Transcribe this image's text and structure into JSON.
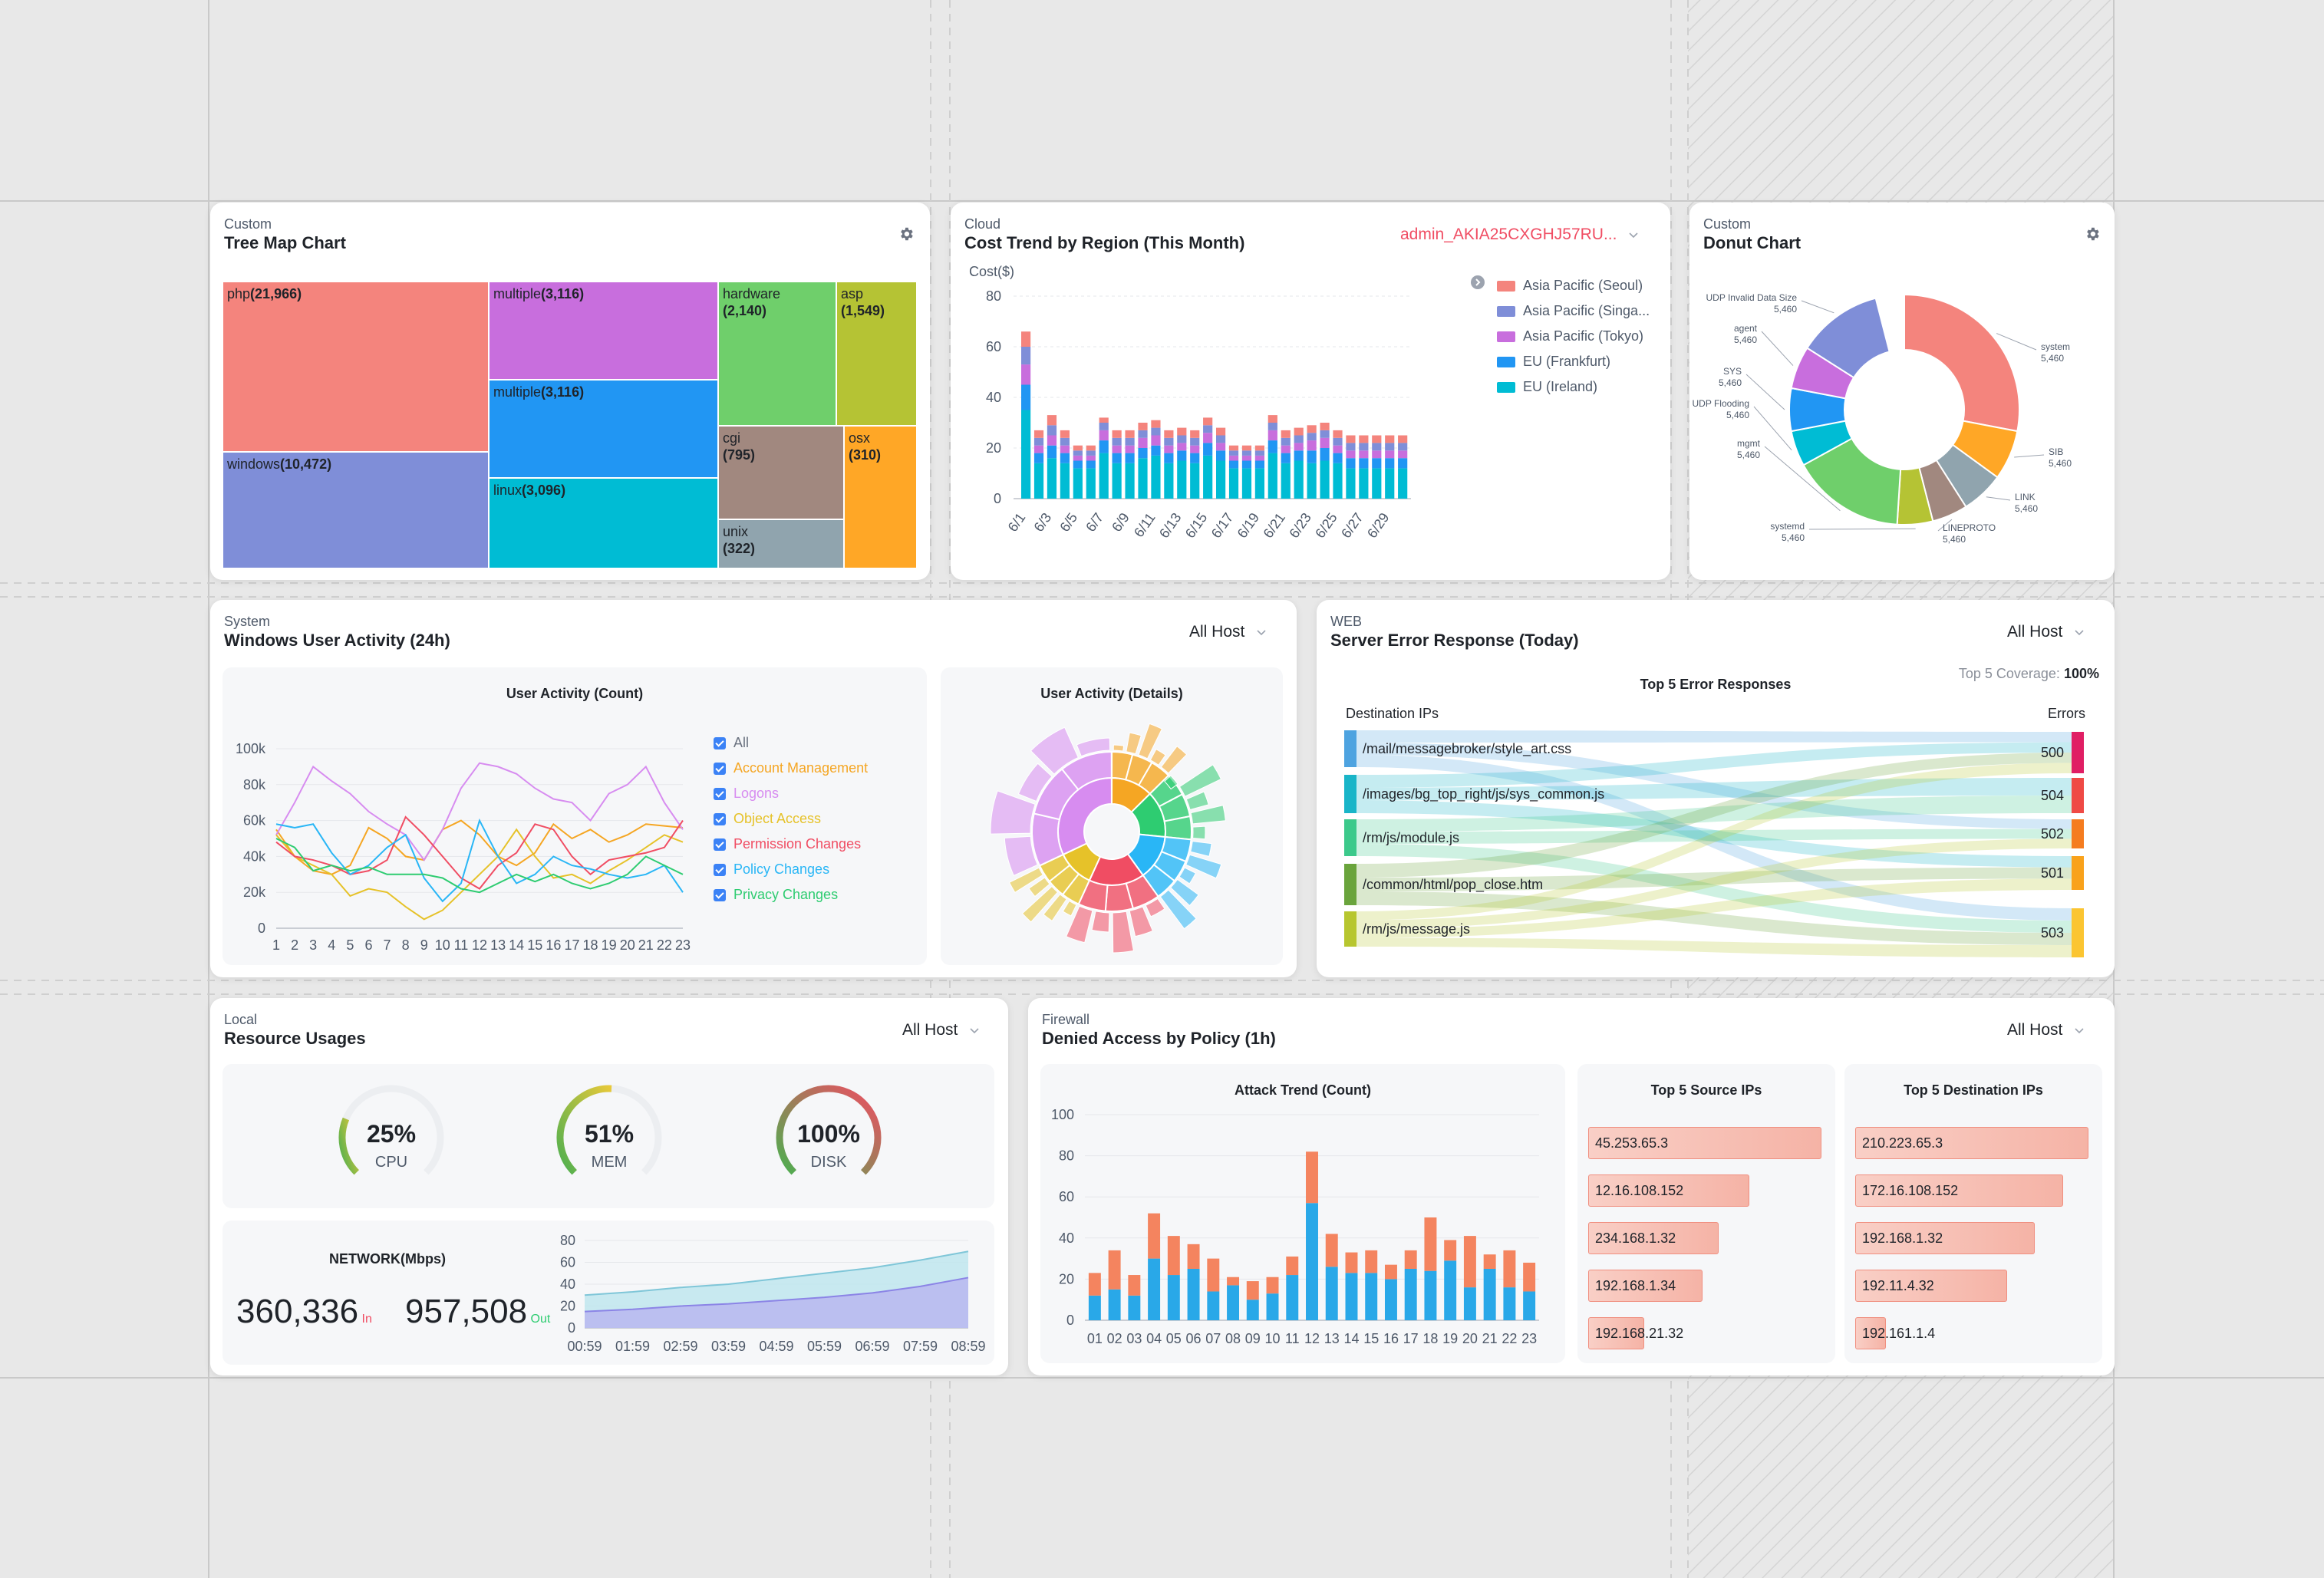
{
  "treemap": {
    "category": "Custom",
    "title": "Tree Map Chart",
    "tiles": [
      {
        "name": "php",
        "value": "(21,966)",
        "color": "#f4847d"
      },
      {
        "name": "windows",
        "value": "(10,472)",
        "color": "#7f8ed8"
      },
      {
        "name": "multiple",
        "value": "(3,116)",
        "color": "#c86edd"
      },
      {
        "name": "multiple",
        "value": "(3,116)",
        "color": "#2196f3"
      },
      {
        "name": "linux",
        "value": "(3,096)",
        "color": "#00bcd4"
      },
      {
        "name": "hardware",
        "value": "(2,140)",
        "color": "#6fcf6b"
      },
      {
        "name": "asp",
        "value": "(1,549)",
        "color": "#b5c334"
      },
      {
        "name": "cgi",
        "value": "(795)",
        "color": "#a1887f"
      },
      {
        "name": "osx",
        "value": "(310)",
        "color": "#ffa726"
      },
      {
        "name": "unix",
        "value": "(322)",
        "color": "#90a4ae"
      }
    ]
  },
  "cost": {
    "category": "Cloud",
    "title": "Cost Trend by Region (This Month)",
    "account": "admin_AKIA25CXGHJ57RU...",
    "ylabel": "Cost($)",
    "yticks": [
      "80",
      "60",
      "40",
      "20",
      "0"
    ],
    "xticks": [
      "6/1",
      "6/3",
      "6/5",
      "6/7",
      "6/9",
      "6/11",
      "6/13",
      "6/15",
      "6/17",
      "6/19",
      "6/21",
      "6/23",
      "6/25",
      "6/27",
      "6/29"
    ],
    "legend": [
      {
        "name": "Asia Pacific (Seoul)",
        "color": "#f4847d"
      },
      {
        "name": "Asia Pacific (Singa...",
        "color": "#7f8ed8"
      },
      {
        "name": "Asia Pacific (Tokyo)",
        "color": "#c86edd"
      },
      {
        "name": "EU (Frankfurt)",
        "color": "#2196f3"
      },
      {
        "name": "EU (Ireland)",
        "color": "#00bcd4"
      }
    ]
  },
  "donut": {
    "category": "Custom",
    "title": "Donut Chart",
    "slices": [
      {
        "name": "system",
        "value": "5,460",
        "color": "#f4847d",
        "frac": 0.28
      },
      {
        "name": "SIB",
        "value": "5,460",
        "color": "#ffa726",
        "frac": 0.07
      },
      {
        "name": "LINK",
        "value": "5,460",
        "color": "#90a4ae",
        "frac": 0.06
      },
      {
        "name": "LINEPROTO",
        "value": "5,460",
        "color": "#a1887f",
        "frac": 0.05
      },
      {
        "name": "systemd",
        "value": "5,460",
        "color": "#b5c334",
        "frac": 0.05
      },
      {
        "name": "mgmt",
        "value": "5,460",
        "color": "#6fcf6b",
        "frac": 0.16
      },
      {
        "name": "UDP Flooding",
        "value": "5,460",
        "color": "#00bcd4",
        "frac": 0.05
      },
      {
        "name": "SYS",
        "value": "5,460",
        "color": "#2196f3",
        "frac": 0.06
      },
      {
        "name": "agent",
        "value": "5,460",
        "color": "#c86edd",
        "frac": 0.06
      },
      {
        "name": "UDP Invalid Data Size",
        "value": "5,460",
        "color": "#7f8ed8",
        "frac": 0.12
      }
    ]
  },
  "winact": {
    "category": "System",
    "title": "Windows User Activity (24h)",
    "host": "All Host",
    "chart_title": "User Activity (Count)",
    "details_title": "User Activity (Details)",
    "yticks": [
      "100k",
      "80k",
      "60k",
      "40k",
      "20k",
      "0"
    ],
    "xticks": [
      "1",
      "2",
      "3",
      "4",
      "5",
      "6",
      "7",
      "8",
      "9",
      "10",
      "11",
      "12",
      "13",
      "14",
      "15",
      "16",
      "17",
      "18",
      "19",
      "20",
      "21",
      "22",
      "23"
    ],
    "legend": [
      {
        "name": "All",
        "color": "#6b7280"
      },
      {
        "name": "Account Management",
        "color": "#f5a623"
      },
      {
        "name": "Logons",
        "color": "#d78cf0"
      },
      {
        "name": "Object Access",
        "color": "#e6c229"
      },
      {
        "name": "Permission Changes",
        "color": "#f04d63"
      },
      {
        "name": "Policy Changes",
        "color": "#29b6f6"
      },
      {
        "name": "Privacy Changes",
        "color": "#2ecc71"
      }
    ]
  },
  "server": {
    "category": "WEB",
    "title": "Server Error Response (Today)",
    "host": "All Host",
    "chart_title": "Top 5 Error Responses",
    "coverage_label": "Top 5 Coverage:",
    "coverage_value": "100%",
    "left_header": "Destination IPs",
    "right_header": "Errors",
    "left": [
      {
        "name": "/mail/messagebroker/style_art.css",
        "color": "#4ea3e0"
      },
      {
        "name": "/images/bg_top_right/js/sys_common.js",
        "color": "#19b5c8"
      },
      {
        "name": "/rm/js/module.js",
        "color": "#3cc98b"
      },
      {
        "name": "/common/html/pop_close.htm",
        "color": "#6aa43c"
      },
      {
        "name": "/rm/js/message.js",
        "color": "#b7c62f"
      }
    ],
    "right": [
      {
        "name": "500",
        "color": "#e01e64"
      },
      {
        "name": "504",
        "color": "#ef4a45"
      },
      {
        "name": "502",
        "color": "#f57c1f"
      },
      {
        "name": "501",
        "color": "#f9a21b"
      },
      {
        "name": "503",
        "color": "#fbc531"
      }
    ]
  },
  "resource": {
    "category": "Local",
    "title": "Resource Usages",
    "host": "All Host",
    "gauges": [
      {
        "pct": "25%",
        "label": "CPU",
        "frac": 0.25
      },
      {
        "pct": "51%",
        "label": "MEM",
        "frac": 0.51
      },
      {
        "pct": "100%",
        "label": "DISK",
        "frac": 1.0
      }
    ],
    "network_title": "NETWORK(Mbps)",
    "in_value": "360,336",
    "in_label": "In",
    "out_value": "957,508",
    "out_label": "Out",
    "net_yticks": [
      "80",
      "60",
      "40",
      "20",
      "0"
    ],
    "net_xticks": [
      "00:59",
      "01:59",
      "02:59",
      "03:59",
      "04:59",
      "05:59",
      "06:59",
      "07:59",
      "08:59"
    ]
  },
  "firewall": {
    "category": "Firewall",
    "title": "Denied Access by Policy (1h)",
    "host": "All Host",
    "trend_title": "Attack Trend (Count)",
    "src_title": "Top 5 Source IPs",
    "dst_title": "Top 5 Destination IPs",
    "yticks": [
      "100",
      "80",
      "60",
      "40",
      "20",
      "0"
    ],
    "xticks": [
      "01",
      "02",
      "03",
      "04",
      "05",
      "06",
      "07",
      "08",
      "09",
      "10",
      "11",
      "12",
      "13",
      "14",
      "15",
      "16",
      "17",
      "18",
      "19",
      "20",
      "21",
      "22",
      "23"
    ],
    "src": [
      {
        "ip": "45.253.65.3",
        "frac": 1.0
      },
      {
        "ip": "12.16.108.152",
        "frac": 0.69
      },
      {
        "ip": "234.168.1.32",
        "frac": 0.56
      },
      {
        "ip": "192.168.1.34",
        "frac": 0.49
      },
      {
        "ip": "192.168.21.32",
        "frac": 0.24
      }
    ],
    "dst": [
      {
        "ip": "210.223.65.3",
        "frac": 1.0
      },
      {
        "ip": "172.16.108.152",
        "frac": 0.89
      },
      {
        "ip": "192.168.1.32",
        "frac": 0.77
      },
      {
        "ip": "192.11.4.32",
        "frac": 0.65
      },
      {
        "ip": "192.161.1.4",
        "frac": 0.13
      }
    ]
  },
  "chart_data": [
    {
      "type": "bar",
      "title": "Cost Trend by Region (This Month)",
      "ylabel": "Cost($)",
      "ylim": [
        0,
        80
      ],
      "x": [
        "6/1",
        "6/2",
        "6/3",
        "6/4",
        "6/5",
        "6/6",
        "6/7",
        "6/8",
        "6/9",
        "6/10",
        "6/11",
        "6/12",
        "6/13",
        "6/14",
        "6/15",
        "6/16",
        "6/17",
        "6/18",
        "6/19",
        "6/20",
        "6/21",
        "6/22",
        "6/23",
        "6/24",
        "6/25",
        "6/26",
        "6/27",
        "6/28",
        "6/29",
        "6/30"
      ],
      "series": [
        {
          "name": "EU (Ireland)",
          "values": [
            35,
            14,
            16,
            14,
            12,
            12,
            18,
            14,
            14,
            16,
            17,
            14,
            15,
            14,
            17,
            15,
            12,
            12,
            12,
            18,
            14,
            15,
            14,
            15,
            14,
            12,
            12,
            12,
            12,
            12
          ]
        },
        {
          "name": "EU (Frankfurt)",
          "values": [
            10,
            4,
            5,
            4,
            3,
            3,
            5,
            4,
            4,
            4,
            4,
            4,
            4,
            4,
            5,
            4,
            3,
            3,
            3,
            5,
            4,
            4,
            5,
            5,
            4,
            4,
            4,
            4,
            4,
            4
          ]
        },
        {
          "name": "Asia Pacific (Tokyo)",
          "values": [
            8,
            3,
            4,
            3,
            2,
            2,
            4,
            3,
            3,
            4,
            4,
            3,
            3,
            3,
            4,
            3,
            2,
            2,
            2,
            4,
            3,
            3,
            4,
            4,
            3,
            3,
            3,
            3,
            3,
            3
          ]
        },
        {
          "name": "Asia Pacific (Singa...",
          "values": [
            7,
            3,
            4,
            3,
            2,
            2,
            3,
            3,
            3,
            3,
            3,
            3,
            3,
            3,
            3,
            3,
            2,
            2,
            2,
            3,
            3,
            3,
            3,
            3,
            3,
            3,
            3,
            3,
            3,
            3
          ]
        },
        {
          "name": "Asia Pacific (Seoul)",
          "values": [
            6,
            3,
            4,
            3,
            2,
            2,
            2,
            3,
            3,
            3,
            3,
            3,
            3,
            3,
            3,
            3,
            2,
            2,
            2,
            3,
            3,
            3,
            3,
            3,
            3,
            3,
            3,
            3,
            3,
            3
          ]
        }
      ]
    },
    {
      "type": "line",
      "title": "User Activity (Count)",
      "ylim": [
        0,
        100000
      ],
      "x": [
        1,
        2,
        3,
        4,
        5,
        6,
        7,
        8,
        9,
        10,
        11,
        12,
        13,
        14,
        15,
        16,
        17,
        18,
        19,
        20,
        21,
        22,
        23
      ],
      "series": [
        {
          "name": "Account Management",
          "values": [
            55000,
            40000,
            32000,
            30000,
            35000,
            56000,
            50000,
            40000,
            38000,
            55000,
            60000,
            52000,
            40000,
            35000,
            42000,
            58000,
            50000,
            55000,
            48000,
            52000,
            58000,
            57000,
            56000
          ]
        },
        {
          "name": "Logons",
          "values": [
            52000,
            70000,
            90000,
            82000,
            75000,
            65000,
            58000,
            52000,
            38000,
            55000,
            78000,
            92000,
            90000,
            86000,
            78000,
            72000,
            70000,
            60000,
            75000,
            80000,
            90000,
            70000,
            55000
          ]
        },
        {
          "name": "Object Access",
          "values": [
            52000,
            40000,
            35000,
            30000,
            18000,
            22000,
            20000,
            12000,
            5000,
            10000,
            20000,
            30000,
            40000,
            55000,
            40000,
            28000,
            30000,
            25000,
            32000,
            38000,
            45000,
            52000,
            48000
          ]
        },
        {
          "name": "Permission Changes",
          "values": [
            48000,
            40000,
            38000,
            35000,
            30000,
            32000,
            38000,
            62000,
            52000,
            40000,
            28000,
            22000,
            35000,
            42000,
            58000,
            55000,
            40000,
            30000,
            38000,
            40000,
            42000,
            45000,
            60000
          ]
        },
        {
          "name": "Policy Changes",
          "values": [
            58000,
            56000,
            58000,
            42000,
            30000,
            35000,
            45000,
            52000,
            28000,
            15000,
            25000,
            60000,
            40000,
            25000,
            30000,
            40000,
            35000,
            33000,
            30000,
            28000,
            30000,
            35000,
            20000
          ]
        },
        {
          "name": "Privacy Changes",
          "values": [
            50000,
            45000,
            32000,
            35000,
            32000,
            34000,
            30000,
            30000,
            30000,
            28000,
            22000,
            20000,
            25000,
            30000,
            26000,
            30000,
            25000,
            22000,
            25000,
            30000,
            40000,
            35000,
            30000
          ]
        }
      ]
    },
    {
      "type": "bar",
      "title": "Attack Trend (Count)",
      "ylim": [
        0,
        100
      ],
      "x": [
        "01",
        "02",
        "03",
        "04",
        "05",
        "06",
        "07",
        "08",
        "09",
        "10",
        "11",
        "12",
        "13",
        "14",
        "15",
        "16",
        "17",
        "18",
        "19",
        "20",
        "21",
        "22",
        "23"
      ],
      "series": [
        {
          "name": "blue",
          "values": [
            12,
            15,
            12,
            30,
            22,
            25,
            14,
            17,
            10,
            13,
            22,
            57,
            26,
            23,
            23,
            20,
            25,
            24,
            29,
            16,
            25,
            16,
            14
          ]
        },
        {
          "name": "orange",
          "values": [
            11,
            19,
            10,
            22,
            19,
            12,
            16,
            4,
            9,
            8,
            9,
            25,
            16,
            10,
            11,
            7,
            9,
            26,
            10,
            25,
            7,
            18,
            14
          ]
        }
      ]
    },
    {
      "type": "area",
      "title": "NETWORK(Mbps)",
      "ylim": [
        0,
        80
      ],
      "x": [
        "00:59",
        "01:59",
        "02:59",
        "03:59",
        "04:59",
        "05:59",
        "06:59",
        "07:59",
        "08:59"
      ],
      "series": [
        {
          "name": "Out",
          "values": [
            30,
            33,
            37,
            40,
            45,
            50,
            55,
            62,
            70
          ]
        },
        {
          "name": "In",
          "values": [
            15,
            17,
            20,
            22,
            25,
            28,
            32,
            38,
            46
          ]
        }
      ]
    }
  ]
}
